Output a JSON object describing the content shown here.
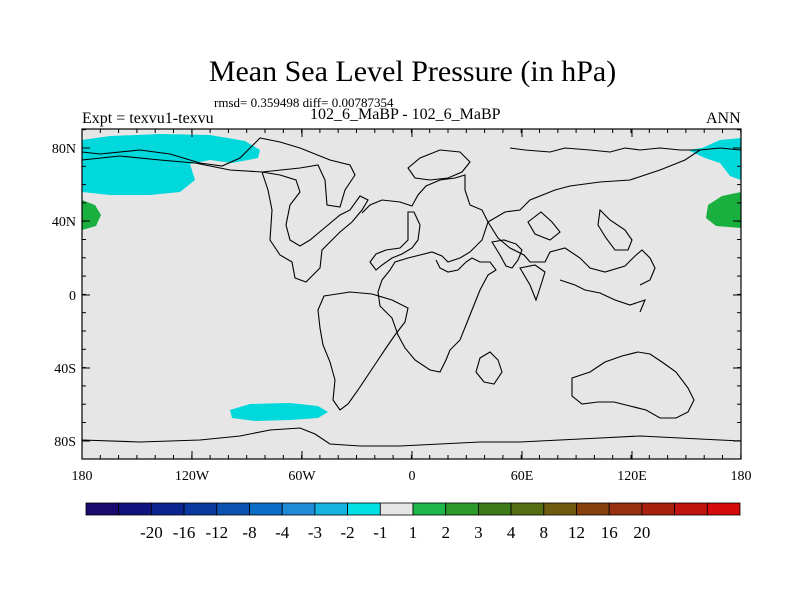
{
  "title": "Mean Sea Level Pressure (in hPa)",
  "stats": "rmsd= 0.359498 diff= 0.00787354",
  "left_label": "Expt = texvu1-texvu",
  "center_label": "102_6_MaBP - 102_6_MaBP",
  "right_label": "ANN",
  "colors": {
    "background": "#e6e6e6",
    "coast": "#000000",
    "neg_1_2": "#00d8dc",
    "pos_1_2": "#1ab040"
  },
  "x_ticks": [
    "180",
    "120W",
    "60W",
    "0",
    "60E",
    "120E",
    "180"
  ],
  "y_ticks": [
    "80N",
    "40N",
    "0",
    "40S",
    "80S"
  ],
  "colorbar": {
    "colors": [
      "#1a0a6e",
      "#11137e",
      "#0b2490",
      "#0a3aa0",
      "#0c52b3",
      "#0c6dc6",
      "#1f8ad6",
      "#15b2e0",
      "#00e1e6",
      "#e6e6e6",
      "#1eb84a",
      "#2d9a2a",
      "#3d7a18",
      "#566f12",
      "#6e5b10",
      "#86400e",
      "#963010",
      "#a8200e",
      "#c0120e",
      "#d60a0a"
    ],
    "labels": [
      "-20",
      "-16",
      "-12",
      "-8",
      "-4",
      "-3",
      "-2",
      "-1",
      "1",
      "2",
      "3",
      "4",
      "8",
      "12",
      "16",
      "20"
    ]
  }
}
